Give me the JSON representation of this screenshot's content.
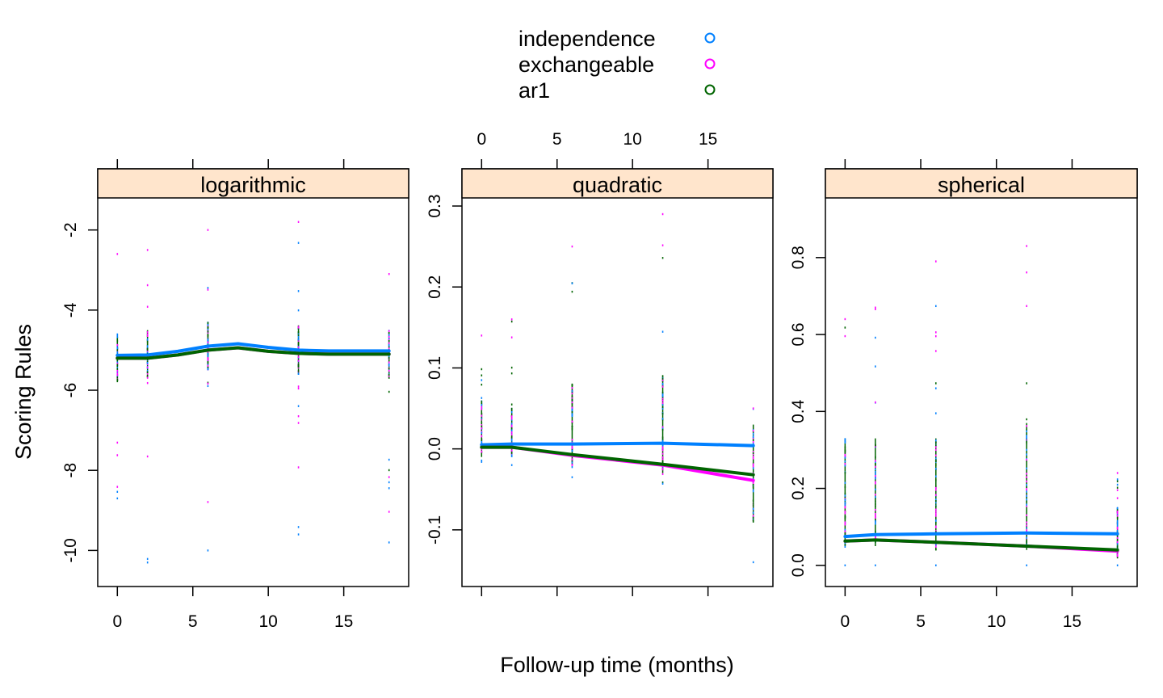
{
  "chart_data": {
    "type": "scatter",
    "xlabel": "Follow-up time (months)",
    "ylabel": "Scoring Rules",
    "x_ticks": [
      0,
      5,
      10,
      15
    ],
    "time_points": [
      0,
      2,
      6,
      12,
      18
    ],
    "legend": {
      "placement": "top-center",
      "entries": [
        {
          "name": "independence",
          "color": "#0080ff"
        },
        {
          "name": "exchangeable",
          "color": "#ff00ff"
        },
        {
          "name": "ar1",
          "color": "#006400"
        }
      ]
    },
    "strip_color": "#ffe5cc",
    "panels": [
      {
        "strip": "logarithmic",
        "xlim": [
          -1.3,
          19.3
        ],
        "ylim": [
          -10.9,
          -1.2
        ],
        "y_ticks": [
          -10,
          -8,
          -6,
          -4,
          -2
        ],
        "y_tick_labels": [
          "-10",
          "-8",
          "-6",
          "-4",
          "-2"
        ],
        "spread": [
          {
            "x": 0,
            "low": -8.7,
            "high": -2.6,
            "q1": -5.8,
            "q3": -4.6
          },
          {
            "x": 2,
            "low": -10.3,
            "high": -2.5,
            "q1": -5.7,
            "q3": -4.5
          },
          {
            "x": 6,
            "low": -10.0,
            "high": -2.0,
            "q1": -5.5,
            "q3": -4.3
          },
          {
            "x": 12,
            "low": -9.6,
            "high": -1.8,
            "q1": -5.6,
            "q3": -4.4
          },
          {
            "x": 18,
            "low": -9.8,
            "high": -3.1,
            "q1": -5.7,
            "q3": -4.5
          }
        ],
        "series": [
          {
            "name": "independence",
            "x": [
              0,
              2,
              4,
              6,
              8,
              10,
              12,
              14,
              16,
              18
            ],
            "y": [
              -5.13,
              -5.12,
              -5.03,
              -4.9,
              -4.84,
              -4.93,
              -5.0,
              -5.02,
              -5.02,
              -5.02
            ]
          },
          {
            "name": "exchangeable",
            "x": [
              0,
              2,
              4,
              6,
              8,
              10,
              12,
              14,
              16,
              18
            ],
            "y": [
              -5.2,
              -5.2,
              -5.12,
              -5.0,
              -4.94,
              -5.03,
              -5.08,
              -5.1,
              -5.1,
              -5.1
            ]
          },
          {
            "name": "ar1",
            "x": [
              0,
              2,
              4,
              6,
              8,
              10,
              12,
              14,
              16,
              18
            ],
            "y": [
              -5.2,
              -5.2,
              -5.12,
              -5.0,
              -4.94,
              -5.03,
              -5.08,
              -5.1,
              -5.1,
              -5.1
            ]
          }
        ]
      },
      {
        "strip": "quadratic",
        "xlim": [
          -1.3,
          19.3
        ],
        "ylim": [
          -0.17,
          0.31
        ],
        "y_ticks": [
          -0.1,
          0.0,
          0.1,
          0.2,
          0.3
        ],
        "y_tick_labels": [
          "-0.1",
          "0.0",
          "0.1",
          "0.2",
          "0.3"
        ],
        "spread": [
          {
            "x": 0,
            "low": -0.016,
            "high": 0.14,
            "q1": -0.01,
            "q3": 0.06
          },
          {
            "x": 2,
            "low": -0.02,
            "high": 0.16,
            "q1": -0.01,
            "q3": 0.05
          },
          {
            "x": 6,
            "low": -0.035,
            "high": 0.25,
            "q1": -0.02,
            "q3": 0.08
          },
          {
            "x": 12,
            "low": -0.043,
            "high": 0.29,
            "q1": -0.03,
            "q3": 0.09
          },
          {
            "x": 18,
            "low": -0.14,
            "high": 0.05,
            "q1": -0.09,
            "q3": 0.03
          }
        ],
        "series": [
          {
            "name": "independence",
            "x": [
              0,
              2,
              6,
              12,
              18
            ],
            "y": [
              0.005,
              0.006,
              0.006,
              0.007,
              0.004
            ]
          },
          {
            "name": "exchangeable",
            "x": [
              0,
              2,
              6,
              12,
              18
            ],
            "y": [
              0.002,
              0.002,
              -0.008,
              -0.02,
              -0.039
            ]
          },
          {
            "name": "ar1",
            "x": [
              0,
              2,
              6,
              12,
              18
            ],
            "y": [
              0.002,
              0.002,
              -0.007,
              -0.019,
              -0.032
            ]
          }
        ]
      },
      {
        "strip": "spherical",
        "xlim": [
          -1.3,
          19.3
        ],
        "ylim": [
          -0.055,
          0.955
        ],
        "y_ticks": [
          0.0,
          0.2,
          0.4,
          0.6,
          0.8
        ],
        "y_tick_labels": [
          "0.0",
          "0.2",
          "0.4",
          "0.6",
          "0.8"
        ],
        "spread": [
          {
            "x": 0,
            "low": 0.0,
            "high": 0.64,
            "q1": 0.05,
            "q3": 0.33
          },
          {
            "x": 2,
            "low": 0.0,
            "high": 0.67,
            "q1": 0.05,
            "q3": 0.33
          },
          {
            "x": 6,
            "low": 0.0,
            "high": 0.79,
            "q1": 0.04,
            "q3": 0.33
          },
          {
            "x": 12,
            "low": 0.0,
            "high": 0.83,
            "q1": 0.04,
            "q3": 0.37
          },
          {
            "x": 18,
            "low": 0.0,
            "high": 0.24,
            "q1": 0.02,
            "q3": 0.15
          }
        ],
        "series": [
          {
            "name": "independence",
            "x": [
              0,
              2,
              6,
              12,
              18
            ],
            "y": [
              0.075,
              0.08,
              0.082,
              0.084,
              0.082
            ]
          },
          {
            "name": "exchangeable",
            "x": [
              0,
              2,
              6,
              12,
              18
            ],
            "y": [
              0.063,
              0.066,
              0.06,
              0.05,
              0.037
            ]
          },
          {
            "name": "ar1",
            "x": [
              0,
              2,
              6,
              12,
              18
            ],
            "y": [
              0.063,
              0.066,
              0.06,
              0.05,
              0.04
            ]
          }
        ]
      }
    ]
  }
}
